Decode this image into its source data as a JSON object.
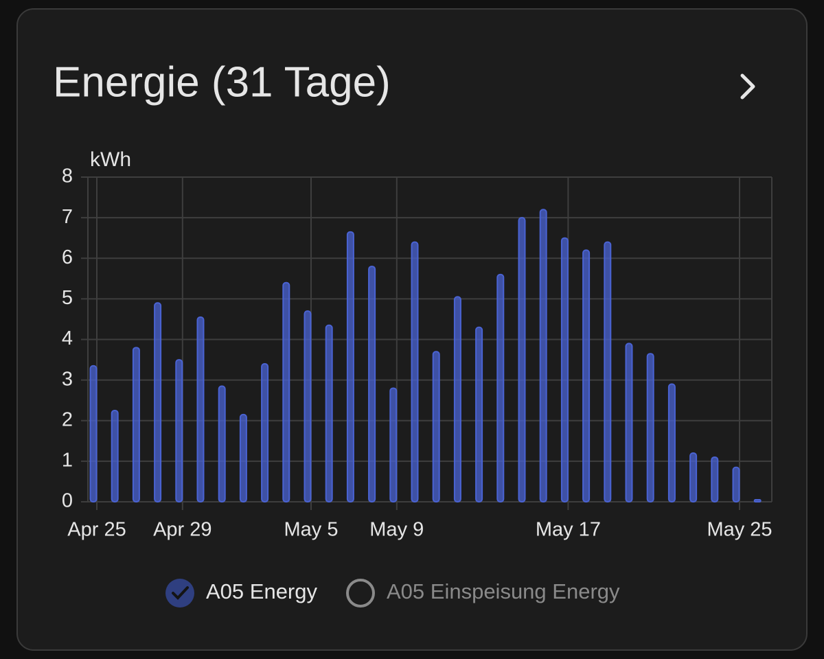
{
  "chart_data": {
    "type": "bar",
    "title": "Energie (31 Tage)",
    "y_label": "kWh",
    "categories": [
      "Apr 25",
      null,
      null,
      null,
      "Apr 29",
      null,
      null,
      null,
      null,
      null,
      "May 5",
      null,
      null,
      null,
      "May 9",
      null,
      null,
      null,
      null,
      null,
      null,
      null,
      "May 17",
      null,
      null,
      null,
      null,
      null,
      null,
      null,
      "May 25",
      null
    ],
    "series": [
      {
        "name": "A05 Energy",
        "color": "#4a63d3",
        "values": [
          3.35,
          2.25,
          3.8,
          4.9,
          3.5,
          4.55,
          2.85,
          2.15,
          3.4,
          5.4,
          4.7,
          4.35,
          6.65,
          5.8,
          2.8,
          6.4,
          3.7,
          5.05,
          4.3,
          5.6,
          7.0,
          7.2,
          6.5,
          6.2,
          6.4,
          3.9,
          3.65,
          2.9,
          1.2,
          1.1,
          0.85,
          0.05
        ]
      }
    ],
    "legend": [
      {
        "name": "A05 Energy",
        "checked": true
      },
      {
        "name": "A05 Einspeisung Energy",
        "checked": false
      }
    ],
    "ylim": [
      0,
      8
    ],
    "yticks": [
      0,
      1,
      2,
      3,
      4,
      5,
      6,
      7,
      8
    ],
    "grid": true
  }
}
